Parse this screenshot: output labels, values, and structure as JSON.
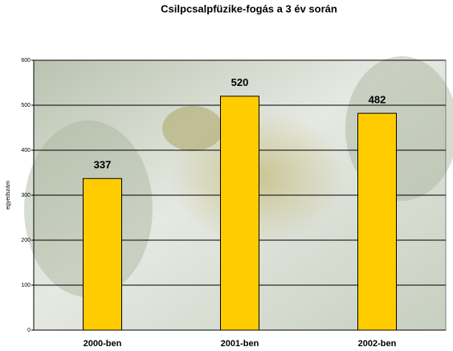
{
  "chart_data": {
    "type": "bar",
    "title": "Csilpcsalpfüzike-fogás a 3 év során",
    "y_label": "egyedszám",
    "categories": [
      "2000-ben",
      "2001-ben",
      "2002-ben"
    ],
    "values": [
      337,
      520,
      482
    ],
    "color": "#ffcc00",
    "ylim": [
      0,
      600
    ],
    "yticks": [
      0,
      100,
      200,
      300,
      400,
      500,
      600
    ],
    "grid": true
  }
}
